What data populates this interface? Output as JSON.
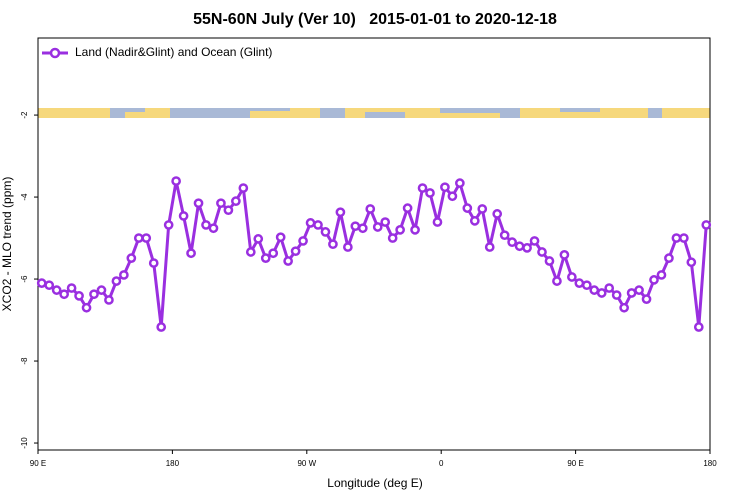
{
  "chart_data": {
    "type": "line",
    "title": "55N-60N July (Ver 10)   2015-01-01 to 2020-12-18",
    "x_label": "Longitude (deg E)",
    "y_label": "XCO2 - MLO trend (ppm)",
    "legend": "upper left",
    "xlim": [
      90,
      540
    ],
    "xticks": [
      {
        "value": 90,
        "label": "90 E"
      },
      {
        "value": 180,
        "label": "180"
      },
      {
        "value": 270,
        "label": "90 W"
      },
      {
        "value": 360,
        "label": "0"
      },
      {
        "value": 450,
        "label": "90 E"
      },
      {
        "value": 540,
        "label": "180"
      }
    ],
    "ylim": [
      -10.17,
      -0.12
    ],
    "yticks": [
      -10,
      -8,
      -6,
      -4,
      -2
    ],
    "x": [
      92.5,
      97.5,
      102.5,
      107.5,
      112.5,
      117.5,
      122.5,
      127.5,
      132.5,
      137.5,
      142.5,
      147.5,
      152.5,
      157.5,
      162.5,
      167.5,
      172.5,
      177.5,
      182.5,
      187.5,
      192.5,
      197.5,
      202.5,
      207.5,
      212.5,
      217.5,
      222.5,
      227.5,
      232.5,
      237.5,
      242.5,
      247.5,
      252.5,
      257.5,
      262.5,
      267.5,
      272.5,
      277.5,
      282.5,
      287.5,
      292.5,
      297.5,
      302.5,
      307.5,
      312.5,
      317.5,
      322.5,
      327.5,
      332.5,
      337.5,
      342.5,
      347.5,
      352.5,
      357.5,
      362.5,
      367.5,
      372.5,
      377.5,
      382.5,
      387.5,
      392.5,
      397.5,
      402.5,
      407.5,
      412.5,
      417.5,
      422.5,
      427.5,
      432.5,
      437.5,
      442.5,
      447.5,
      452.5,
      457.5,
      462.5,
      467.5,
      472.5,
      477.5,
      482.5,
      487.5,
      492.5,
      497.5,
      502.5,
      507.5,
      512.5,
      517.5,
      522.5,
      527.5,
      532.5,
      537.5
    ],
    "series": [
      {
        "name": "Land (Nadir&Glint) and Ocean (Glint)",
        "color": "#9a2fe0",
        "values": [
          -6.1,
          -6.15,
          -6.27,
          -6.37,
          -6.22,
          -6.41,
          -6.7,
          -6.37,
          -6.27,
          -6.51,
          -6.05,
          -5.9,
          -5.49,
          -5.0,
          -5.0,
          -5.61,
          -7.17,
          -4.68,
          -3.61,
          -4.46,
          -5.37,
          -4.15,
          -4.68,
          -4.76,
          -4.15,
          -4.32,
          -4.1,
          -3.78,
          -5.34,
          -5.02,
          -5.49,
          -5.37,
          -4.98,
          -5.56,
          -5.32,
          -5.07,
          -4.63,
          -4.68,
          -4.85,
          -5.15,
          -4.37,
          -5.22,
          -4.71,
          -4.76,
          -4.29,
          -4.73,
          -4.61,
          -5.0,
          -4.8,
          -4.27,
          -4.8,
          -3.78,
          -3.9,
          -4.61,
          -3.76,
          -3.98,
          -3.66,
          -4.27,
          -4.58,
          -4.29,
          -5.22,
          -4.41,
          -4.93,
          -5.1,
          -5.2,
          -5.24,
          -5.07,
          -5.34,
          -5.56,
          -6.05,
          -5.41,
          -5.95,
          -6.1,
          -6.15,
          -6.27,
          -6.34,
          -6.22,
          -6.39,
          -6.7,
          -6.34,
          -6.27,
          -6.49,
          -6.02,
          -5.9,
          -5.49,
          -5.0,
          -5.0,
          -5.59,
          -7.17,
          -4.68
        ]
      }
    ]
  }
}
